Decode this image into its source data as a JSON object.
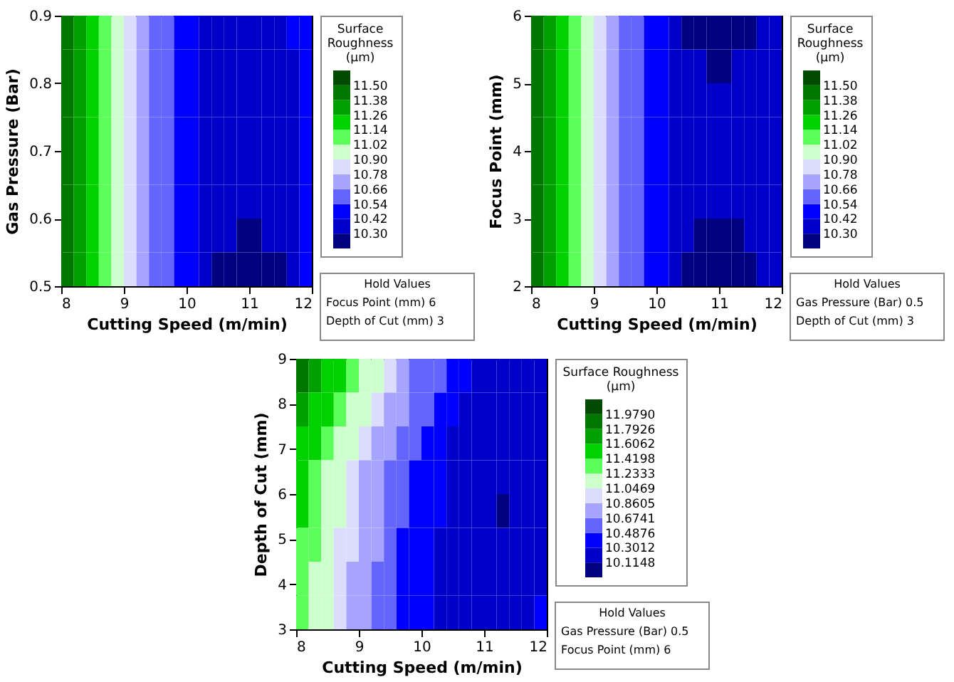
{
  "chart_data": [
    {
      "type": "heatmap",
      "xlabel": "Cutting Speed (m/min)",
      "ylabel": "Gas Pressure (Bar)",
      "clabel": "Surface Roughness (µm)",
      "x": [
        8.1,
        8.3,
        8.5,
        8.7,
        8.9,
        9.1,
        9.3,
        9.5,
        9.7,
        9.9,
        10.1,
        10.3,
        10.5,
        10.7,
        10.9,
        11.1,
        11.3,
        11.5,
        11.7,
        11.9
      ],
      "y": [
        0.875,
        0.825,
        0.775,
        0.725,
        0.675,
        0.625,
        0.575,
        0.525
      ],
      "xlim": [
        8,
        12
      ],
      "xticks": [
        8,
        9,
        10,
        11,
        12
      ],
      "ylim": [
        0.5,
        0.9
      ],
      "yticks": [
        0.5,
        0.6,
        0.7,
        0.8,
        0.9
      ],
      "cticks": [
        {
          "value": 10.3,
          "label": "10.30"
        },
        10.42,
        10.54,
        10.66,
        10.78,
        {
          "value": 10.9,
          "label": "10.90"
        },
        11.02,
        11.14,
        11.26,
        11.38,
        {
          "value": 11.5,
          "label": "11.50"
        }
      ],
      "colors": [
        "#000080",
        "#0000c8",
        "#0000ff",
        "#6464ff",
        "#a5a5ff",
        "#dcdcff",
        "#ccffcc",
        "#5aff5a",
        "#00d200",
        "#00a000",
        "#007800",
        "#004b00"
      ],
      "cells": [
        [
          11.44,
          11.32,
          11.2,
          11.08,
          10.96,
          10.84,
          10.72,
          10.6,
          10.6,
          10.48,
          10.48,
          10.36,
          10.36,
          10.36,
          10.36,
          10.36,
          10.36,
          10.36,
          10.48,
          10.48
        ],
        [
          11.44,
          11.32,
          11.2,
          11.08,
          10.96,
          10.84,
          10.72,
          10.6,
          10.6,
          10.48,
          10.48,
          10.36,
          10.36,
          10.36,
          10.36,
          10.36,
          10.36,
          10.36,
          10.36,
          10.48
        ],
        [
          11.44,
          11.32,
          11.2,
          11.08,
          10.96,
          10.84,
          10.72,
          10.6,
          10.6,
          10.48,
          10.48,
          10.36,
          10.36,
          10.36,
          10.36,
          10.36,
          10.36,
          10.36,
          10.36,
          10.48
        ],
        [
          11.44,
          11.32,
          11.2,
          11.08,
          10.96,
          10.84,
          10.72,
          10.6,
          10.6,
          10.48,
          10.48,
          10.36,
          10.36,
          10.36,
          10.36,
          10.36,
          10.36,
          10.36,
          10.36,
          10.48
        ],
        [
          11.44,
          11.32,
          11.2,
          11.08,
          10.96,
          10.84,
          10.72,
          10.6,
          10.6,
          10.48,
          10.48,
          10.36,
          10.36,
          10.36,
          10.36,
          10.36,
          10.36,
          10.36,
          10.36,
          10.48
        ],
        [
          11.44,
          11.32,
          11.2,
          11.08,
          10.96,
          10.84,
          10.72,
          10.6,
          10.6,
          10.48,
          10.48,
          10.36,
          10.36,
          10.36,
          10.36,
          10.36,
          10.36,
          10.36,
          10.36,
          10.48
        ],
        [
          11.44,
          11.32,
          11.2,
          11.08,
          10.96,
          10.84,
          10.72,
          10.6,
          10.6,
          10.48,
          10.48,
          10.36,
          10.36,
          10.36,
          10.24,
          10.24,
          10.36,
          10.36,
          10.36,
          10.48
        ],
        [
          11.44,
          11.32,
          11.2,
          11.08,
          10.96,
          10.84,
          10.72,
          10.6,
          10.6,
          10.48,
          10.48,
          10.36,
          10.24,
          10.24,
          10.24,
          10.24,
          10.24,
          10.24,
          10.36,
          10.48
        ]
      ],
      "annotations": [
        "Hold Values",
        "Focus Point (mm)   6",
        "Depth of Cut (mm)   3"
      ]
    },
    {
      "type": "heatmap",
      "xlabel": "Cutting Speed (m/min)",
      "ylabel": "Focus Point (mm)",
      "clabel": "Surface Roughness (µm)",
      "x": [
        8.1,
        8.3,
        8.5,
        8.7,
        8.9,
        9.1,
        9.3,
        9.5,
        9.7,
        9.9,
        10.1,
        10.3,
        10.5,
        10.7,
        10.9,
        11.1,
        11.3,
        11.5,
        11.7,
        11.9
      ],
      "y": [
        5.75,
        5.25,
        4.75,
        4.25,
        3.75,
        3.25,
        2.75,
        2.25
      ],
      "xlim": [
        8,
        12
      ],
      "xticks": [
        8,
        9,
        10,
        11,
        12
      ],
      "ylim": [
        2,
        6
      ],
      "yticks": [
        2,
        3,
        4,
        5,
        6
      ],
      "cticks": [
        {
          "value": 10.3,
          "label": "10.30"
        },
        10.42,
        10.54,
        10.66,
        10.78,
        {
          "value": 10.9,
          "label": "10.90"
        },
        11.02,
        11.14,
        11.26,
        11.38,
        {
          "value": 11.5,
          "label": "11.50"
        }
      ],
      "colors": [
        "#000080",
        "#0000c8",
        "#0000ff",
        "#6464ff",
        "#a5a5ff",
        "#dcdcff",
        "#ccffcc",
        "#5aff5a",
        "#00d200",
        "#00a000",
        "#007800",
        "#004b00"
      ],
      "cells": [
        [
          11.44,
          11.32,
          11.2,
          11.08,
          10.96,
          10.84,
          10.72,
          10.6,
          10.6,
          10.48,
          10.48,
          10.36,
          10.24,
          10.24,
          10.24,
          10.24,
          10.24,
          10.24,
          10.36,
          10.36
        ],
        [
          11.44,
          11.32,
          11.2,
          11.08,
          10.96,
          10.84,
          10.72,
          10.6,
          10.6,
          10.48,
          10.48,
          10.36,
          10.36,
          10.36,
          10.24,
          10.24,
          10.36,
          10.36,
          10.36,
          10.36
        ],
        [
          11.44,
          11.32,
          11.2,
          11.08,
          10.96,
          10.84,
          10.72,
          10.6,
          10.6,
          10.48,
          10.48,
          10.36,
          10.36,
          10.36,
          10.36,
          10.36,
          10.36,
          10.36,
          10.36,
          10.36
        ],
        [
          11.44,
          11.32,
          11.2,
          11.08,
          10.96,
          10.84,
          10.72,
          10.6,
          10.6,
          10.48,
          10.48,
          10.36,
          10.36,
          10.36,
          10.36,
          10.36,
          10.36,
          10.36,
          10.36,
          10.36
        ],
        [
          11.44,
          11.32,
          11.2,
          11.08,
          10.96,
          10.84,
          10.72,
          10.6,
          10.6,
          10.48,
          10.48,
          10.36,
          10.36,
          10.36,
          10.36,
          10.36,
          10.36,
          10.36,
          10.36,
          10.36
        ],
        [
          11.44,
          11.32,
          11.2,
          11.08,
          10.96,
          10.84,
          10.72,
          10.6,
          10.6,
          10.48,
          10.48,
          10.36,
          10.36,
          10.36,
          10.36,
          10.36,
          10.36,
          10.36,
          10.36,
          10.36
        ],
        [
          11.44,
          11.32,
          11.2,
          11.08,
          10.96,
          10.84,
          10.72,
          10.6,
          10.6,
          10.48,
          10.48,
          10.36,
          10.36,
          10.24,
          10.24,
          10.24,
          10.24,
          10.36,
          10.36,
          10.36
        ],
        [
          11.44,
          11.32,
          11.2,
          11.08,
          10.96,
          10.84,
          10.72,
          10.6,
          10.6,
          10.48,
          10.48,
          10.36,
          10.24,
          10.24,
          10.24,
          10.24,
          10.24,
          10.24,
          10.36,
          10.36
        ]
      ],
      "annotations": [
        "Hold Values",
        "Gas Pressure (Bar)   0.5",
        "Depth of Cut (mm)   3"
      ]
    },
    {
      "type": "heatmap",
      "xlabel": "Cutting Speed (m/min)",
      "ylabel": "Depth of Cut (mm)",
      "clabel": "Surface Roughness (µm)",
      "x": [
        8.1,
        8.3,
        8.5,
        8.7,
        8.9,
        9.1,
        9.3,
        9.5,
        9.7,
        9.9,
        10.1,
        10.3,
        10.5,
        10.7,
        10.9,
        11.1,
        11.3,
        11.5,
        11.7,
        11.9
      ],
      "y": [
        8.625,
        7.875,
        7.125,
        6.375,
        5.625,
        4.875,
        4.125,
        3.375
      ],
      "xlim": [
        8,
        12
      ],
      "xticks": [
        8,
        9,
        10,
        11,
        12
      ],
      "ylim": [
        3,
        9
      ],
      "yticks": [
        3,
        4,
        5,
        6,
        7,
        8,
        9
      ],
      "cticks": [
        10.1148,
        10.3012,
        10.4876,
        10.6741,
        10.8605,
        11.0469,
        11.2333,
        11.4198,
        11.6062,
        11.7926,
        {
          "value": 11.979,
          "label": "11.9790"
        }
      ],
      "colors": [
        "#000080",
        "#0000c8",
        "#0000ff",
        "#6464ff",
        "#a5a5ff",
        "#dcdcff",
        "#ccffcc",
        "#5aff5a",
        "#00d200",
        "#00a000",
        "#007800",
        "#004b00"
      ],
      "cells": [
        [
          11.89,
          11.7,
          11.51,
          11.51,
          11.33,
          11.14,
          11.14,
          10.95,
          10.77,
          10.58,
          10.58,
          10.58,
          10.39,
          10.39,
          10.21,
          10.21,
          10.21,
          10.21,
          10.21,
          10.21
        ],
        [
          11.7,
          11.51,
          11.51,
          11.33,
          11.14,
          11.14,
          10.95,
          10.77,
          10.77,
          10.58,
          10.58,
          10.39,
          10.39,
          10.21,
          10.21,
          10.21,
          10.21,
          10.21,
          10.21,
          10.21
        ],
        [
          11.51,
          11.51,
          11.33,
          11.14,
          11.14,
          10.95,
          10.77,
          10.77,
          10.58,
          10.58,
          10.39,
          10.39,
          10.21,
          10.21,
          10.21,
          10.21,
          10.21,
          10.21,
          10.21,
          10.21
        ],
        [
          11.51,
          11.33,
          11.14,
          11.14,
          10.95,
          10.77,
          10.77,
          10.58,
          10.58,
          10.39,
          10.39,
          10.39,
          10.21,
          10.21,
          10.21,
          10.21,
          10.21,
          10.21,
          10.21,
          10.21
        ],
        [
          11.51,
          11.33,
          11.14,
          11.14,
          10.95,
          10.77,
          10.77,
          10.58,
          10.58,
          10.39,
          10.39,
          10.39,
          10.21,
          10.21,
          10.21,
          10.21,
          10.02,
          10.21,
          10.21,
          10.21
        ],
        [
          11.33,
          11.33,
          11.14,
          10.95,
          10.95,
          10.77,
          10.77,
          10.58,
          10.39,
          10.39,
          10.39,
          10.21,
          10.21,
          10.21,
          10.21,
          10.21,
          10.21,
          10.21,
          10.21,
          10.21
        ],
        [
          11.33,
          11.14,
          11.14,
          10.95,
          10.77,
          10.77,
          10.58,
          10.58,
          10.39,
          10.39,
          10.39,
          10.21,
          10.21,
          10.21,
          10.21,
          10.21,
          10.21,
          10.21,
          10.21,
          10.21
        ],
        [
          11.33,
          11.14,
          11.14,
          10.95,
          10.77,
          10.77,
          10.58,
          10.58,
          10.39,
          10.39,
          10.39,
          10.21,
          10.21,
          10.21,
          10.21,
          10.21,
          10.21,
          10.21,
          10.21,
          10.39
        ]
      ],
      "annotations": [
        "Hold Values",
        "Gas Pressure (Bar)   0.5",
        "Focus Point (mm)   6"
      ]
    }
  ]
}
